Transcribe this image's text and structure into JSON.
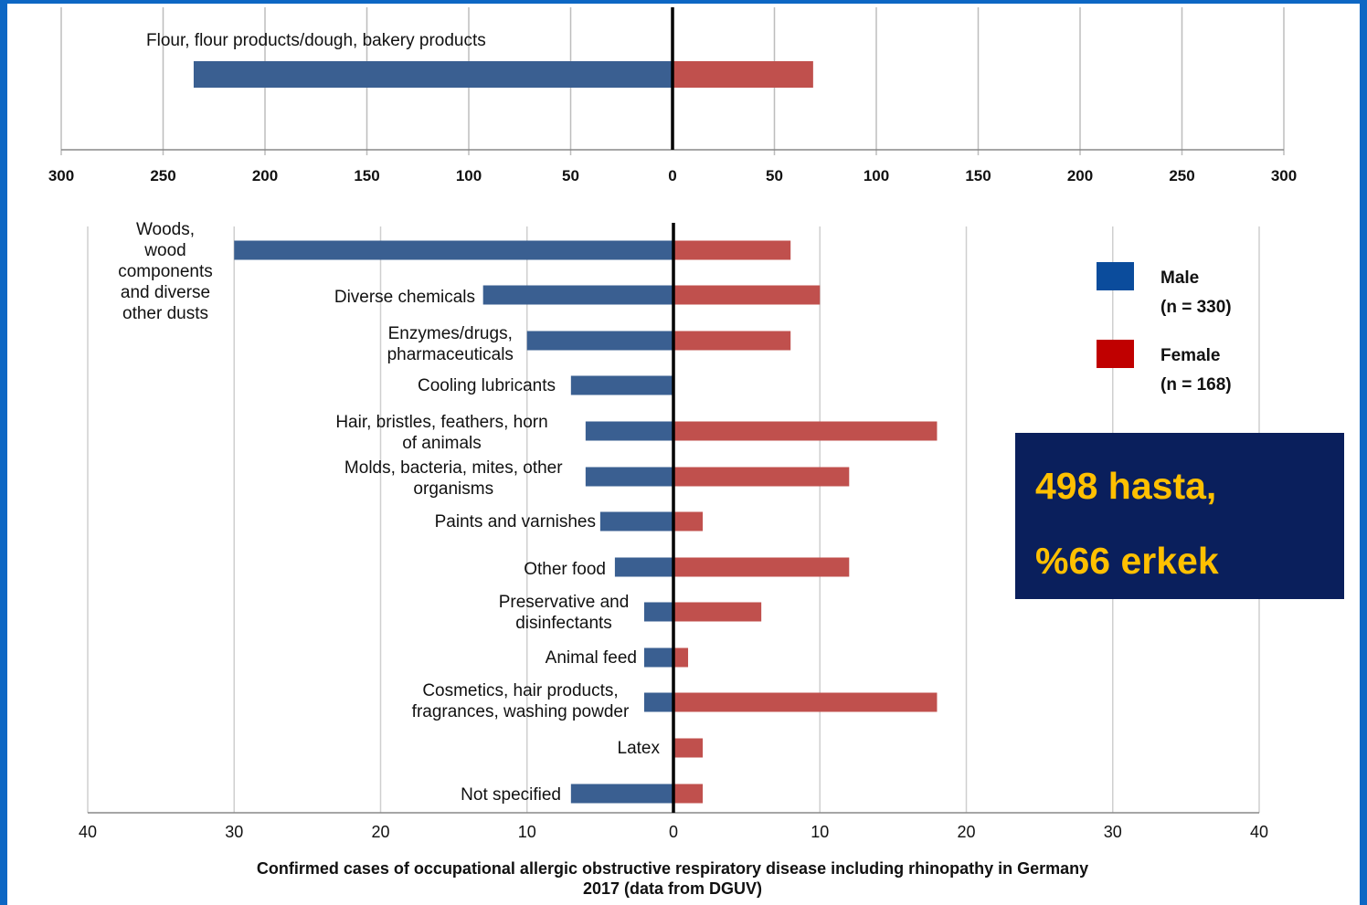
{
  "chart_data": [
    {
      "type": "bar",
      "orientation": "horizontal-diverging",
      "categories": [
        "Flour, flour products/dough, bakery products"
      ],
      "series": [
        {
          "name": "Male",
          "values": [
            235
          ],
          "direction": "left",
          "color": "#3a5f91"
        },
        {
          "name": "Female",
          "values": [
            69
          ],
          "direction": "right",
          "color": "#c0504d"
        }
      ],
      "xlim": [
        -300,
        300
      ],
      "ticks": [
        "300",
        "250",
        "200",
        "150",
        "100",
        "50",
        "0",
        "50",
        "100",
        "150",
        "200",
        "250",
        "300"
      ],
      "grid": true
    },
    {
      "type": "bar",
      "orientation": "horizontal-diverging",
      "categories": [
        [
          "Woods,",
          "wood",
          "components",
          "and diverse",
          "other dusts"
        ],
        [
          "Diverse chemicals"
        ],
        [
          "Enzymes/drugs,",
          "pharmaceuticals"
        ],
        [
          "Cooling lubricants"
        ],
        [
          "Hair, bristles, feathers, horn",
          "of animals"
        ],
        [
          "Molds, bacteria, mites, other",
          "organisms"
        ],
        [
          "Paints and varnishes"
        ],
        [
          "Other food"
        ],
        [
          "Preservative and",
          "disinfectants"
        ],
        [
          "Animal feed"
        ],
        [
          "Cosmetics, hair products,",
          "fragrances, washing powder"
        ],
        [
          "Latex"
        ],
        [
          "Not specified"
        ]
      ],
      "series": [
        {
          "name": "Male",
          "values": [
            30,
            13,
            10,
            7,
            6,
            6,
            5,
            4,
            2,
            2,
            2,
            0,
            7
          ],
          "direction": "left",
          "color": "#3a5f91"
        },
        {
          "name": "Female",
          "values": [
            8,
            10,
            8,
            0,
            18,
            12,
            2,
            12,
            6,
            1,
            18,
            2,
            2
          ],
          "direction": "right",
          "color": "#c0504d"
        }
      ],
      "xlim": [
        -40,
        40
      ],
      "ticks": [
        "40",
        "30",
        "20",
        "10",
        "0",
        "10",
        "20",
        "30",
        "40"
      ],
      "grid": true,
      "legend": {
        "placement": "top-right",
        "entries": [
          {
            "label": "Male",
            "sub": "(n = 330)",
            "color": "#0b4c9c"
          },
          {
            "label": "Female",
            "sub": "(n = 168)",
            "color": "#c00000"
          }
        ]
      },
      "caption": [
        "Confirmed cases of occupational allergic obstructive respiratory disease including rhinopathy in Germany",
        "2017 (data from DGUV)"
      ]
    }
  ],
  "note": {
    "line1": "498 hasta,",
    "line2": "%66 erkek",
    "background": "#0a1f5c",
    "color": "#ffc000"
  }
}
